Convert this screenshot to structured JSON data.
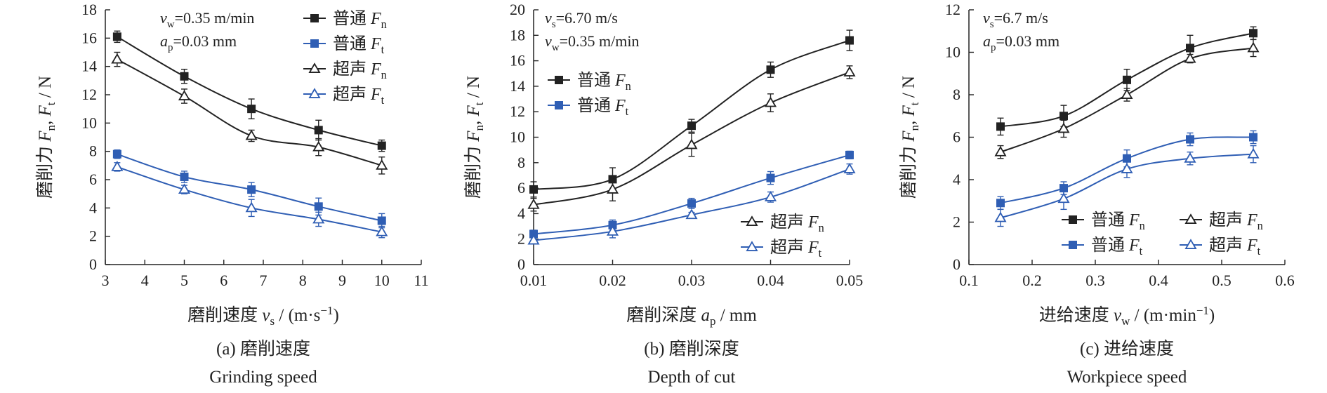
{
  "chart_data": [
    {
      "type": "line",
      "caption": "(a) 磨削速度",
      "caption_en": "Grinding speed",
      "xlabel": "磨削速度 vs / (m·s⁻¹)",
      "ylabel": "磨削力 Fn, Ft / N",
      "xlim": [
        3,
        11
      ],
      "ylim": [
        0,
        18
      ],
      "xticks": [
        3,
        4,
        5,
        6,
        7,
        8,
        9,
        10,
        11
      ],
      "yticks": [
        0,
        2,
        4,
        6,
        8,
        10,
        12,
        14,
        16,
        18
      ],
      "x": [
        3.3,
        5.0,
        6.7,
        8.4,
        10.0
      ],
      "annotations": [
        "vw=0.35 m/min",
        "ap=0.03 mm"
      ],
      "legend_position": "top-right",
      "series": [
        {
          "name": "普通 Fn",
          "color": "#222222",
          "marker": "square",
          "values": [
            16.1,
            13.3,
            11.0,
            9.5,
            8.4
          ],
          "err": [
            0.4,
            0.5,
            0.7,
            0.7,
            0.4
          ]
        },
        {
          "name": "普通 Ft",
          "color": "#2f5eb4",
          "marker": "square",
          "values": [
            7.8,
            6.2,
            5.3,
            4.1,
            3.1
          ],
          "err": [
            0.3,
            0.4,
            0.5,
            0.6,
            0.5
          ]
        },
        {
          "name": "超声 Fn",
          "color": "#222222",
          "marker": "triangle",
          "values": [
            14.5,
            11.9,
            9.1,
            8.3,
            7.0
          ],
          "err": [
            0.5,
            0.5,
            0.4,
            0.6,
            0.6
          ]
        },
        {
          "name": "超声 Ft",
          "color": "#2f5eb4",
          "marker": "triangle",
          "values": [
            6.9,
            5.3,
            4.0,
            3.2,
            2.3
          ],
          "err": [
            0.3,
            0.3,
            0.6,
            0.5,
            0.4
          ]
        }
      ]
    },
    {
      "type": "line",
      "caption": "(b) 磨削深度",
      "caption_en": "Depth of cut",
      "xlabel": "磨削深度 ap / mm",
      "ylabel": "磨削力 Fn, Ft / N",
      "xlim": [
        0.01,
        0.05
      ],
      "ylim": [
        0,
        20
      ],
      "xticks": [
        0.01,
        0.02,
        0.03,
        0.04,
        0.05
      ],
      "xticklabels": [
        "0.01",
        "0.02",
        "0.03",
        "0.04",
        "0.05"
      ],
      "yticks": [
        0,
        2,
        4,
        6,
        8,
        10,
        12,
        14,
        16,
        18,
        20
      ],
      "x": [
        0.01,
        0.02,
        0.03,
        0.04,
        0.05
      ],
      "annotations": [
        "vs=6.70 m/s",
        "vw=0.35 m/min"
      ],
      "legend_position": "upper-left and lower-right",
      "series": [
        {
          "name": "普通 Fn",
          "color": "#222222",
          "marker": "square",
          "values": [
            5.9,
            6.7,
            10.9,
            15.3,
            17.6
          ],
          "err": [
            0.6,
            0.9,
            0.5,
            0.6,
            0.8
          ]
        },
        {
          "name": "普通 Ft",
          "color": "#2f5eb4",
          "marker": "square",
          "values": [
            2.4,
            3.1,
            4.8,
            6.8,
            8.6
          ],
          "err": [
            0.3,
            0.4,
            0.4,
            0.5,
            0.3
          ]
        },
        {
          "name": "超声 Fn",
          "color": "#222222",
          "marker": "triangle",
          "values": [
            4.7,
            5.9,
            9.4,
            12.7,
            15.1
          ],
          "err": [
            0.5,
            0.9,
            0.9,
            0.7,
            0.5
          ]
        },
        {
          "name": "超声 Ft",
          "color": "#2f5eb4",
          "marker": "triangle",
          "values": [
            1.9,
            2.6,
            3.9,
            5.3,
            7.5
          ],
          "err": [
            0.2,
            0.5,
            0.2,
            0.4,
            0.4
          ]
        }
      ]
    },
    {
      "type": "line",
      "caption": "(c) 进给速度",
      "caption_en": "Workpiece speed",
      "xlabel": "进给速度 vw / (m·min⁻¹)",
      "ylabel": "磨削力 Fn, Ft / N",
      "xlim": [
        0.1,
        0.6
      ],
      "ylim": [
        0,
        12
      ],
      "xticks": [
        0.1,
        0.2,
        0.3,
        0.4,
        0.5,
        0.6
      ],
      "xticklabels": [
        "0.1",
        "0.2",
        "0.3",
        "0.4",
        "0.5",
        "0.6"
      ],
      "yticks": [
        0,
        2,
        4,
        6,
        8,
        10,
        12
      ],
      "x": [
        0.15,
        0.25,
        0.35,
        0.45,
        0.55
      ],
      "annotations": [
        "vs=6.7 m/s",
        "ap=0.03 mm"
      ],
      "legend_position": "bottom-right",
      "series": [
        {
          "name": "普通 Fn",
          "color": "#222222",
          "marker": "square",
          "values": [
            6.5,
            7.0,
            8.7,
            10.2,
            10.9
          ],
          "err": [
            0.4,
            0.5,
            0.5,
            0.6,
            0.3
          ]
        },
        {
          "name": "普通 Ft",
          "color": "#2f5eb4",
          "marker": "square",
          "values": [
            2.9,
            3.6,
            5.0,
            5.9,
            6.0
          ],
          "err": [
            0.3,
            0.3,
            0.4,
            0.3,
            0.3
          ]
        },
        {
          "name": "超声 Fn",
          "color": "#222222",
          "marker": "triangle",
          "values": [
            5.3,
            6.4,
            8.0,
            9.7,
            10.2
          ],
          "err": [
            0.3,
            0.4,
            0.3,
            0.2,
            0.4
          ]
        },
        {
          "name": "超声 Ft",
          "color": "#2f5eb4",
          "marker": "triangle",
          "values": [
            2.2,
            3.1,
            4.5,
            5.0,
            5.2
          ],
          "err": [
            0.4,
            0.5,
            0.4,
            0.3,
            0.4
          ]
        }
      ]
    }
  ]
}
